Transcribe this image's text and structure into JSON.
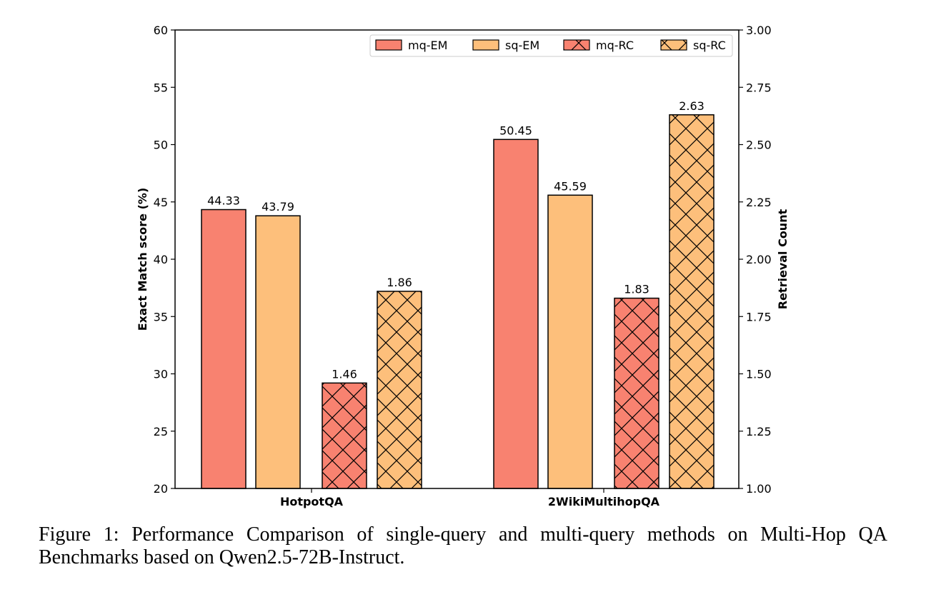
{
  "chart_data": {
    "type": "bar",
    "categories": [
      "HotpotQA",
      "2WikiMultihopQA"
    ],
    "series": [
      {
        "name": "mq-EM",
        "axis": "left",
        "values": [
          44.33,
          50.45
        ],
        "labels": [
          "44.33",
          "50.45"
        ],
        "color": "#f88270",
        "hatched": false
      },
      {
        "name": "sq-EM",
        "axis": "left",
        "values": [
          43.79,
          45.59
        ],
        "labels": [
          "43.79",
          "45.59"
        ],
        "color": "#fdbf7b",
        "hatched": false
      },
      {
        "name": "mq-RC",
        "axis": "right",
        "values": [
          1.46,
          1.83
        ],
        "labels": [
          "1.46",
          "1.83"
        ],
        "color": "#f88270",
        "hatched": true
      },
      {
        "name": "sq-RC",
        "axis": "right",
        "values": [
          1.86,
          2.63
        ],
        "labels": [
          "1.86",
          "2.63"
        ],
        "color": "#fdbf7b",
        "hatched": true
      }
    ],
    "ylabel": "Exact Match score (%)",
    "ylabel_right": "Retrieval Count",
    "ylim": [
      20,
      60
    ],
    "ylim_right": [
      1.0,
      3.0
    ],
    "yticks": [
      "20",
      "25",
      "30",
      "35",
      "40",
      "45",
      "50",
      "55",
      "60"
    ],
    "yticks_right": [
      "1.00",
      "1.25",
      "1.50",
      "1.75",
      "2.00",
      "2.25",
      "2.50",
      "2.75",
      "3.00"
    ],
    "legend": "top-right",
    "grid": false
  },
  "caption": "Figure 1: Performance Comparison of single-query and multi-query methods on Multi-Hop QA Benchmarks based on Qwen2.5-72B-Instruct."
}
